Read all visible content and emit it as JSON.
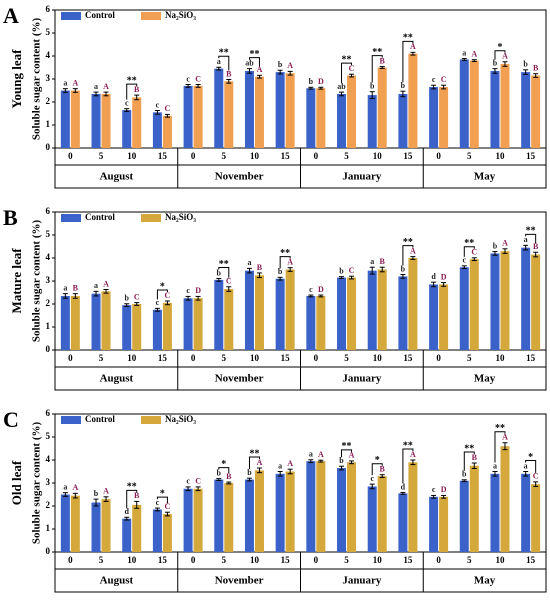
{
  "chart_data": [
    {
      "type": "bar",
      "panel_label": "A",
      "organ": "Young leaf",
      "y_label": "Soluble sugar content (%)",
      "categories": [
        "0",
        "5",
        "10",
        "15",
        "0",
        "5",
        "10",
        "15",
        "0",
        "5",
        "10",
        "15",
        "0",
        "5",
        "10",
        "15"
      ],
      "groups": [
        "August",
        "November",
        "January",
        "May"
      ],
      "ylim": [
        0,
        6
      ],
      "yticks": [
        0,
        1,
        2,
        3,
        4,
        5,
        6
      ],
      "series": [
        {
          "name": "Control",
          "color": "#3b62c9",
          "values": [
            2.5,
            2.35,
            1.65,
            1.55,
            2.7,
            3.45,
            3.35,
            3.3,
            2.6,
            2.35,
            2.3,
            2.35,
            2.65,
            3.85,
            3.35,
            3.3
          ],
          "errors": [
            0.08,
            0.08,
            0.06,
            0.08,
            0.06,
            0.06,
            0.1,
            0.08,
            0.04,
            0.08,
            0.15,
            0.12,
            0.08,
            0.04,
            0.1,
            0.1
          ],
          "letters": [
            "a",
            "a",
            "c",
            "c",
            "c",
            "a",
            "ab",
            "b",
            "b",
            "ab",
            "b",
            "b",
            "c",
            "a",
            "b",
            "b"
          ]
        },
        {
          "name": "Na₂SiO₃",
          "color": "#f0a050",
          "values": [
            2.5,
            2.35,
            2.2,
            1.4,
            2.7,
            2.9,
            3.1,
            3.25,
            2.6,
            3.15,
            3.5,
            4.1,
            2.65,
            3.8,
            3.65,
            3.15
          ],
          "errors": [
            0.08,
            0.08,
            0.1,
            0.06,
            0.06,
            0.08,
            0.06,
            0.08,
            0.04,
            0.06,
            0.04,
            0.06,
            0.08,
            0.04,
            0.1,
            0.08
          ],
          "letters": [
            "A",
            "A",
            "B",
            "C",
            "C",
            "B",
            "A",
            "A",
            "D",
            "C",
            "B",
            "A",
            "C",
            "A",
            "A",
            "B"
          ]
        }
      ],
      "significance": [
        null,
        null,
        "**",
        null,
        null,
        "**",
        "**",
        null,
        null,
        "**",
        "**",
        "**",
        null,
        null,
        "*",
        null
      ]
    },
    {
      "type": "bar",
      "panel_label": "B",
      "organ": "Mature leaf",
      "y_label": "Soluble sugar content (%)",
      "categories": [
        "0",
        "5",
        "10",
        "15",
        "0",
        "5",
        "10",
        "15",
        "0",
        "5",
        "10",
        "15",
        "0",
        "5",
        "10",
        "15"
      ],
      "groups": [
        "August",
        "November",
        "January",
        "May"
      ],
      "ylim": [
        0,
        6
      ],
      "yticks": [
        0,
        1,
        2,
        3,
        4,
        5,
        6
      ],
      "series": [
        {
          "name": "Control",
          "color": "#3b62c9",
          "values": [
            2.35,
            2.45,
            1.95,
            1.75,
            2.25,
            3.05,
            3.45,
            3.1,
            2.35,
            3.15,
            3.45,
            3.2,
            2.85,
            3.6,
            4.2,
            4.45
          ],
          "errors": [
            0.1,
            0.1,
            0.06,
            0.06,
            0.08,
            0.06,
            0.1,
            0.06,
            0.04,
            0.04,
            0.15,
            0.08,
            0.1,
            0.06,
            0.08,
            0.1
          ],
          "letters": [
            "a",
            "a",
            "b",
            "c",
            "c",
            "b",
            "a",
            "b",
            "c",
            "b",
            "a",
            "b",
            "d",
            "c",
            "b",
            "a"
          ]
        },
        {
          "name": "Na₂SiO₃",
          "color": "#d4a83a",
          "values": [
            2.35,
            2.55,
            2.0,
            2.05,
            2.25,
            2.65,
            3.25,
            3.5,
            2.35,
            3.15,
            3.5,
            4.0,
            2.85,
            3.95,
            4.3,
            4.15
          ],
          "errors": [
            0.1,
            0.08,
            0.06,
            0.08,
            0.08,
            0.1,
            0.1,
            0.08,
            0.04,
            0.06,
            0.1,
            0.06,
            0.08,
            0.06,
            0.1,
            0.1
          ],
          "letters": [
            "B",
            "A",
            "C",
            "C",
            "D",
            "C",
            "B",
            "A",
            "D",
            "C",
            "B",
            "A",
            "D",
            "C",
            "A",
            "B"
          ]
        }
      ],
      "significance": [
        null,
        null,
        null,
        "*",
        null,
        "**",
        null,
        "**",
        null,
        null,
        null,
        "**",
        null,
        "**",
        null,
        "**"
      ]
    },
    {
      "type": "bar",
      "panel_label": "C",
      "organ": "Old leaf",
      "y_label": "Soluble sugar content (%)",
      "categories": [
        "0",
        "5",
        "10",
        "15",
        "0",
        "5",
        "10",
        "15",
        "0",
        "5",
        "10",
        "15",
        "0",
        "5",
        "10",
        "15"
      ],
      "groups": [
        "August",
        "November",
        "January",
        "May"
      ],
      "ylim": [
        0,
        6
      ],
      "yticks": [
        0,
        1,
        2,
        3,
        4,
        5,
        6
      ],
      "series": [
        {
          "name": "Control",
          "color": "#3b62c9",
          "values": [
            2.5,
            2.15,
            1.45,
            1.85,
            2.75,
            3.15,
            3.15,
            3.4,
            3.95,
            3.65,
            2.85,
            2.55,
            2.4,
            3.1,
            3.4,
            3.4
          ],
          "errors": [
            0.08,
            0.15,
            0.06,
            0.06,
            0.08,
            0.04,
            0.06,
            0.1,
            0.06,
            0.08,
            0.1,
            0.04,
            0.06,
            0.04,
            0.1,
            0.1
          ],
          "letters": [
            "a",
            "b",
            "d",
            "c",
            "c",
            "b",
            "b",
            "a",
            "a",
            "b",
            "c",
            "d",
            "c",
            "b",
            "a",
            "a"
          ]
        },
        {
          "name": "Na₂SiO₃",
          "color": "#d4a83a",
          "values": [
            2.45,
            2.3,
            2.05,
            1.65,
            2.75,
            3.0,
            3.55,
            3.5,
            3.95,
            3.9,
            3.3,
            3.9,
            2.4,
            3.75,
            4.6,
            2.95
          ],
          "errors": [
            0.1,
            0.1,
            0.15,
            0.08,
            0.08,
            0.04,
            0.1,
            0.1,
            0.04,
            0.06,
            0.06,
            0.1,
            0.06,
            0.12,
            0.15,
            0.1
          ],
          "letters": [
            "A",
            "A",
            "B",
            "C",
            "C",
            "B",
            "A",
            "A",
            "A",
            "A",
            "B",
            "A",
            "D",
            "B",
            "A",
            "C"
          ]
        }
      ],
      "significance": [
        null,
        null,
        "**",
        "*",
        null,
        "*",
        "**",
        null,
        null,
        "**",
        "*",
        "**",
        null,
        "**",
        "**",
        "*"
      ]
    }
  ]
}
